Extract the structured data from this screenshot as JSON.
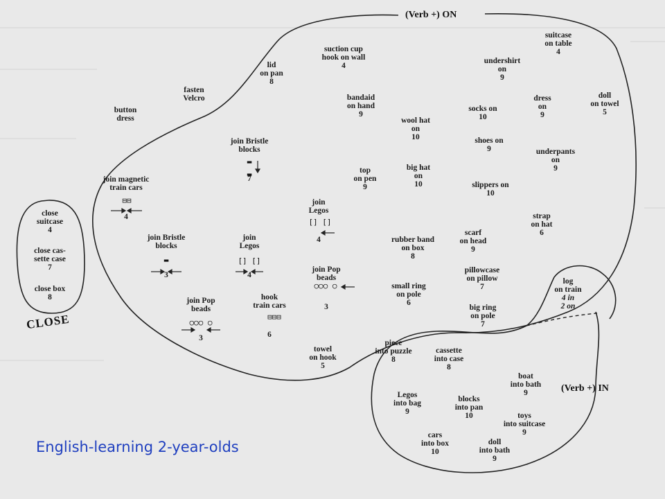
{
  "regions": {
    "on": {
      "title": "(Verb +) ON"
    },
    "close": {
      "title": "CLOSE"
    },
    "in": {
      "title": "(Verb +) IN"
    }
  },
  "caption": "English-learning 2-year-olds",
  "close_items": [
    {
      "label": "close suitcase",
      "lines": [
        "close",
        "suitcase"
      ],
      "count": "4"
    },
    {
      "label": "close cassette case",
      "lines": [
        "close cas-",
        "sette case"
      ],
      "count": "7"
    },
    {
      "label": "close box",
      "lines": [
        "close box"
      ],
      "count": "8"
    }
  ],
  "outside_items": [
    {
      "lines": [
        "button",
        "dress"
      ],
      "count": ""
    },
    {
      "lines": [
        "fasten",
        "Velcro"
      ],
      "count": ""
    }
  ],
  "on_items": [
    {
      "lines": [
        "lid",
        "on pan"
      ],
      "count": "8"
    },
    {
      "lines": [
        "suction cup",
        "hook on wall"
      ],
      "count": "4"
    },
    {
      "lines": [
        "bandaid",
        "on hand"
      ],
      "count": "9"
    },
    {
      "lines": [
        "undershirt",
        "on"
      ],
      "count": "9"
    },
    {
      "lines": [
        "suitcase",
        "on table"
      ],
      "count": "4"
    },
    {
      "lines": [
        "dress",
        "on"
      ],
      "count": "9"
    },
    {
      "lines": [
        "doll",
        "on towel"
      ],
      "count": "5"
    },
    {
      "lines": [
        "socks on"
      ],
      "count": "10"
    },
    {
      "lines": [
        "wool hat",
        "on"
      ],
      "count": "10"
    },
    {
      "lines": [
        "join Bristle",
        "blocks"
      ],
      "count": "7"
    },
    {
      "lines": [
        "shoes on"
      ],
      "count": "9"
    },
    {
      "lines": [
        "underpants",
        "on"
      ],
      "count": "9"
    },
    {
      "lines": [
        "join magnetic",
        "train cars"
      ],
      "count": "4"
    },
    {
      "lines": [
        "top",
        "on pen"
      ],
      "count": "9"
    },
    {
      "lines": [
        "big hat",
        "on"
      ],
      "count": "10"
    },
    {
      "lines": [
        "slippers on"
      ],
      "count": "10"
    },
    {
      "lines": [
        "join",
        "Legos"
      ],
      "count": "4"
    },
    {
      "lines": [
        "strap",
        "on hat"
      ],
      "count": "6"
    },
    {
      "lines": [
        "scarf",
        "on head"
      ],
      "count": "9"
    },
    {
      "lines": [
        "join Bristle",
        "blocks"
      ],
      "count": "3"
    },
    {
      "lines": [
        "join",
        "Legos"
      ],
      "count": "4"
    },
    {
      "lines": [
        "rubber band",
        "on box"
      ],
      "count": "8"
    },
    {
      "lines": [
        "join Pop",
        "beads"
      ],
      "count": "3"
    },
    {
      "lines": [
        "pillowcase",
        "on pillow"
      ],
      "count": "7"
    },
    {
      "lines": [
        "small ring",
        "on pole"
      ],
      "count": "6"
    },
    {
      "lines": [
        "join Pop",
        "beads"
      ],
      "count": "3"
    },
    {
      "lines": [
        "hook",
        "train cars"
      ],
      "count": "6"
    },
    {
      "lines": [
        "big ring",
        "on pole"
      ],
      "count": "7"
    },
    {
      "lines": [
        "towel",
        "on hook"
      ],
      "count": "5"
    }
  ],
  "overlap_items": [
    {
      "lines": [
        "log",
        "on train"
      ],
      "count_lines": [
        "4 in",
        "2 on"
      ]
    }
  ],
  "in_items": [
    {
      "lines": [
        "piece",
        "into puzzle"
      ],
      "count": "8"
    },
    {
      "lines": [
        "cassette",
        "into case"
      ],
      "count": "8"
    },
    {
      "lines": [
        "boat",
        "into bath"
      ],
      "count": "9"
    },
    {
      "lines": [
        "Legos",
        "into bag"
      ],
      "count": "9"
    },
    {
      "lines": [
        "blocks",
        "into pan"
      ],
      "count": "10"
    },
    {
      "lines": [
        "toys",
        "into suitcase"
      ],
      "count": "9"
    },
    {
      "lines": [
        "cars",
        "into box"
      ],
      "count": "10"
    },
    {
      "lines": [
        "doll",
        "into bath"
      ],
      "count": "9"
    }
  ],
  "glyphs": {
    "magnetic_cars": "⊟⊟",
    "bristle_blocks": "▬",
    "legos": "[] []",
    "pop_beads": "○○○ ○",
    "train_cars": "⊟⊟⊟"
  }
}
